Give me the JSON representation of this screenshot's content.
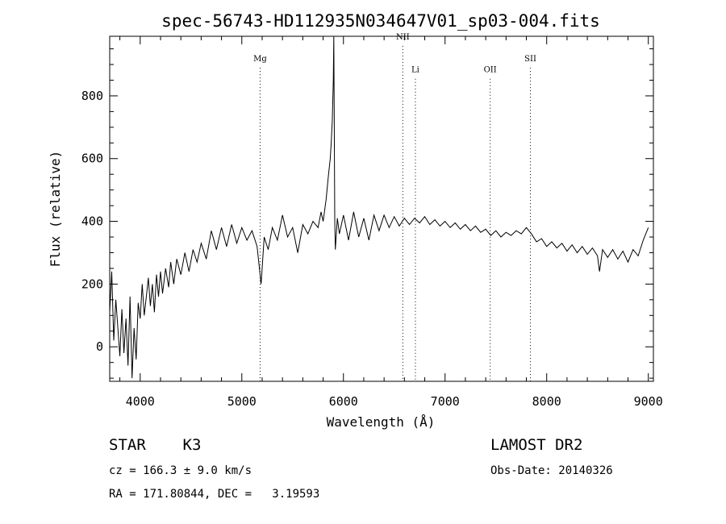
{
  "chart_data": {
    "type": "line",
    "title": "spec-56743-HD112935N034647V01_sp03-004.fits",
    "xlabel": "Wavelength (Å)",
    "ylabel": "Flux (relative)",
    "xlim": [
      3700,
      9050
    ],
    "ylim": [
      -110,
      990
    ],
    "xticks": [
      4000,
      5000,
      6000,
      7000,
      8000,
      9000
    ],
    "yticks": [
      0,
      200,
      400,
      600,
      800
    ],
    "grid": false,
    "series": [
      {
        "points": [
          [
            3700,
            110
          ],
          [
            3720,
            240
          ],
          [
            3740,
            20
          ],
          [
            3760,
            150
          ],
          [
            3780,
            60
          ],
          [
            3800,
            -30
          ],
          [
            3820,
            120
          ],
          [
            3840,
            -20
          ],
          [
            3860,
            90
          ],
          [
            3880,
            -60
          ],
          [
            3900,
            160
          ],
          [
            3920,
            -100
          ],
          [
            3940,
            60
          ],
          [
            3960,
            -40
          ],
          [
            3980,
            140
          ],
          [
            4000,
            90
          ],
          [
            4020,
            200
          ],
          [
            4040,
            100
          ],
          [
            4060,
            160
          ],
          [
            4080,
            220
          ],
          [
            4100,
            130
          ],
          [
            4120,
            200
          ],
          [
            4140,
            110
          ],
          [
            4160,
            230
          ],
          [
            4180,
            160
          ],
          [
            4200,
            240
          ],
          [
            4220,
            170
          ],
          [
            4250,
            250
          ],
          [
            4280,
            190
          ],
          [
            4300,
            270
          ],
          [
            4330,
            200
          ],
          [
            4360,
            280
          ],
          [
            4400,
            230
          ],
          [
            4440,
            300
          ],
          [
            4480,
            240
          ],
          [
            4520,
            310
          ],
          [
            4560,
            270
          ],
          [
            4600,
            330
          ],
          [
            4650,
            280
          ],
          [
            4700,
            370
          ],
          [
            4750,
            310
          ],
          [
            4800,
            380
          ],
          [
            4850,
            320
          ],
          [
            4900,
            390
          ],
          [
            4950,
            330
          ],
          [
            5000,
            380
          ],
          [
            5050,
            340
          ],
          [
            5100,
            370
          ],
          [
            5150,
            320
          ],
          [
            5190,
            200
          ],
          [
            5220,
            350
          ],
          [
            5260,
            310
          ],
          [
            5300,
            380
          ],
          [
            5350,
            340
          ],
          [
            5400,
            420
          ],
          [
            5450,
            350
          ],
          [
            5500,
            380
          ],
          [
            5550,
            300
          ],
          [
            5600,
            390
          ],
          [
            5650,
            360
          ],
          [
            5700,
            400
          ],
          [
            5750,
            380
          ],
          [
            5780,
            430
          ],
          [
            5800,
            400
          ],
          [
            5830,
            470
          ],
          [
            5850,
            540
          ],
          [
            5870,
            600
          ],
          [
            5880,
            650
          ],
          [
            5890,
            720
          ],
          [
            5900,
            850
          ],
          [
            5905,
            990
          ],
          [
            5910,
            700
          ],
          [
            5915,
            400
          ],
          [
            5920,
            310
          ],
          [
            5940,
            410
          ],
          [
            5960,
            360
          ],
          [
            6000,
            420
          ],
          [
            6050,
            340
          ],
          [
            6100,
            430
          ],
          [
            6150,
            350
          ],
          [
            6200,
            410
          ],
          [
            6250,
            340
          ],
          [
            6300,
            420
          ],
          [
            6350,
            370
          ],
          [
            6400,
            420
          ],
          [
            6450,
            380
          ],
          [
            6500,
            415
          ],
          [
            6550,
            385
          ],
          [
            6600,
            410
          ],
          [
            6650,
            390
          ],
          [
            6700,
            410
          ],
          [
            6750,
            395
          ],
          [
            6800,
            415
          ],
          [
            6850,
            390
          ],
          [
            6900,
            405
          ],
          [
            6950,
            385
          ],
          [
            7000,
            400
          ],
          [
            7050,
            380
          ],
          [
            7100,
            395
          ],
          [
            7150,
            375
          ],
          [
            7200,
            390
          ],
          [
            7250,
            370
          ],
          [
            7300,
            385
          ],
          [
            7350,
            365
          ],
          [
            7400,
            375
          ],
          [
            7450,
            355
          ],
          [
            7500,
            370
          ],
          [
            7550,
            350
          ],
          [
            7600,
            365
          ],
          [
            7650,
            355
          ],
          [
            7700,
            370
          ],
          [
            7750,
            360
          ],
          [
            7800,
            380
          ],
          [
            7850,
            360
          ],
          [
            7900,
            335
          ],
          [
            7950,
            345
          ],
          [
            8000,
            320
          ],
          [
            8050,
            335
          ],
          [
            8100,
            315
          ],
          [
            8150,
            330
          ],
          [
            8200,
            305
          ],
          [
            8250,
            325
          ],
          [
            8300,
            300
          ],
          [
            8350,
            320
          ],
          [
            8400,
            295
          ],
          [
            8450,
            315
          ],
          [
            8500,
            290
          ],
          [
            8520,
            240
          ],
          [
            8550,
            310
          ],
          [
            8600,
            285
          ],
          [
            8650,
            310
          ],
          [
            8700,
            280
          ],
          [
            8750,
            305
          ],
          [
            8800,
            270
          ],
          [
            8850,
            310
          ],
          [
            8900,
            290
          ],
          [
            8950,
            340
          ],
          [
            9000,
            380
          ]
        ]
      }
    ],
    "line_markers": [
      {
        "label": "Mg",
        "x": 5180,
        "y": 910
      },
      {
        "label": "NII",
        "x": 6584,
        "y": 980
      },
      {
        "label": "Li",
        "x": 6708,
        "y": 875
      },
      {
        "label": "OII",
        "x": 7444,
        "y": 875
      },
      {
        "label": "SII",
        "x": 7840,
        "y": 910
      }
    ]
  },
  "info": {
    "class_line": "STAR    K3",
    "cz_line": "cz = 166.3 ± 9.0 km/s",
    "coords_line": "RA = 171.80844, DEC =   3.19593",
    "survey": "LAMOST DR2",
    "obs_date": "Obs-Date: 20140326"
  }
}
